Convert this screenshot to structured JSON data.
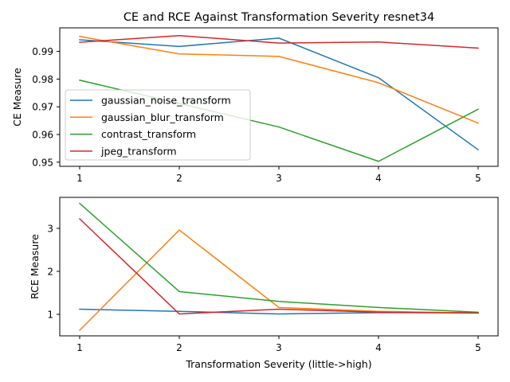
{
  "chart_data": {
    "type": "line",
    "title": "CE and RCE Against Transformation Severity resnet34",
    "xlabel": "Transformation Severity (little->high)",
    "x": [
      1,
      2,
      3,
      4,
      5
    ],
    "x_ticks": [
      "1",
      "2",
      "3",
      "4",
      "5"
    ],
    "series_meta": [
      {
        "name": "gaussian_noise_transform",
        "color": "#1f77b4"
      },
      {
        "name": "gaussian_blur_transform",
        "color": "#ff7f0e"
      },
      {
        "name": "contrast_transform",
        "color": "#2ca02c"
      },
      {
        "name": "jpeg_transform",
        "color": "#d62728"
      }
    ],
    "panels": [
      {
        "ylabel": "CE Measure",
        "ylim": [
          0.9485,
          0.9985
        ],
        "y_ticks": [
          0.95,
          0.96,
          0.97,
          0.98,
          0.99
        ],
        "y_tick_labels": [
          "0.95",
          "0.96",
          "0.97",
          "0.98",
          "0.99"
        ],
        "legend": "center-left",
        "show_x_tick_labels": true,
        "series": [
          {
            "name": "gaussian_noise_transform",
            "values": [
              0.9942,
              0.9918,
              0.9948,
              0.9805,
              0.9545
            ]
          },
          {
            "name": "gaussian_blur_transform",
            "values": [
              0.9954,
              0.9891,
              0.9882,
              0.9787,
              0.9641
            ]
          },
          {
            "name": "contrast_transform",
            "values": [
              0.9796,
              0.9712,
              0.9627,
              0.9503,
              0.9691
            ]
          },
          {
            "name": "jpeg_transform",
            "values": [
              0.9933,
              0.9957,
              0.993,
              0.9934,
              0.9912
            ]
          }
        ]
      },
      {
        "ylabel": "RCE Measure",
        "ylim": [
          0.5,
          3.72
        ],
        "y_ticks": [
          1,
          2,
          3
        ],
        "y_tick_labels": [
          "1",
          "2",
          "3"
        ],
        "legend": "none",
        "show_x_tick_labels": true,
        "series": [
          {
            "name": "gaussian_noise_transform",
            "values": [
              1.12,
              1.07,
              1.01,
              1.04,
              1.04
            ]
          },
          {
            "name": "gaussian_blur_transform",
            "values": [
              0.63,
              2.96,
              1.16,
              1.07,
              1.03
            ]
          },
          {
            "name": "contrast_transform",
            "values": [
              3.58,
              1.53,
              1.3,
              1.16,
              1.05
            ]
          },
          {
            "name": "jpeg_transform",
            "values": [
              3.22,
              1.01,
              1.12,
              1.05,
              1.03
            ]
          }
        ]
      }
    ]
  }
}
